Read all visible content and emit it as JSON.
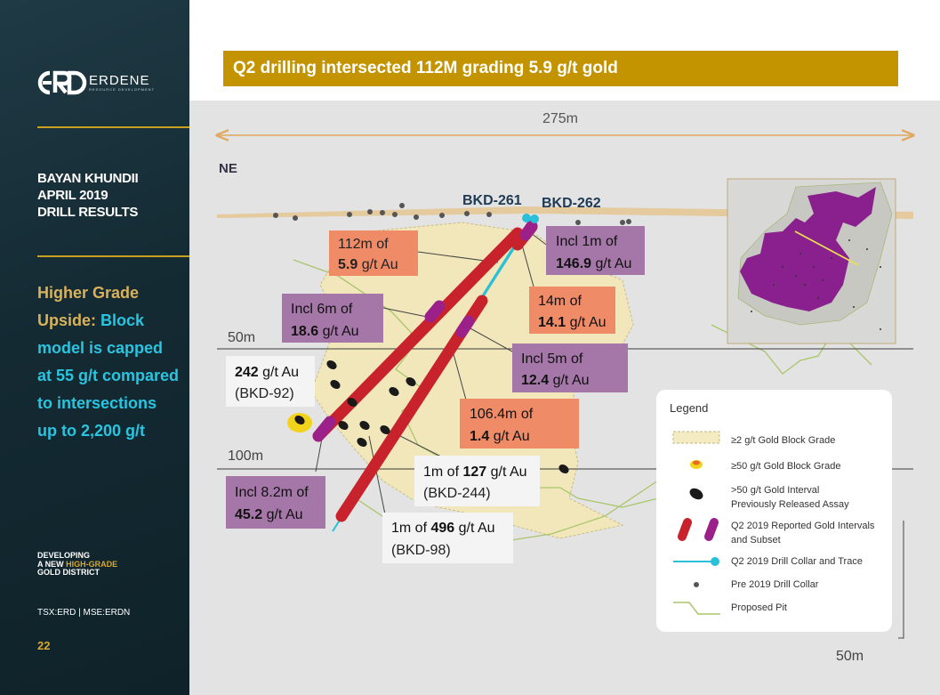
{
  "sidebar": {
    "logo_text": "ERDENE",
    "logo_sub": "RESOURCE DEVELOPMENT",
    "title_lines": [
      "BAYAN KHUNDII",
      "APRIL 2019",
      "DRILL RESULTS"
    ],
    "upside_gold": "Higher Grade Upside:",
    "upside_cyan": "Block model is capped at 55 g/t compared to intersections up to 2,200 g/t",
    "dev_line1": "DEVELOPING",
    "dev_line2_pre": "A NEW ",
    "dev_line2_hl": "HIGH-GRADE",
    "dev_line3": "GOLD DISTRICT",
    "ticker": "TSX:ERD | MSE:ERDN",
    "page_number": "22"
  },
  "banner": {
    "title": "Q2 drilling intersected 112M grading 5.9 g/t gold"
  },
  "colors": {
    "accent_gold": "#c39400",
    "orange_box": "#ef8c67",
    "purple_box": "#a576a8",
    "red_interval": "#c8232c",
    "magenta_interval": "#9b2089",
    "cyan_trace": "#2ac0d8"
  },
  "section": {
    "width_label": "275m",
    "direction": "NE",
    "level_50": "50m",
    "level_100": "100m",
    "hole_a": "BKD-261",
    "hole_b": "BKD-262",
    "scale_label": "50m"
  },
  "callouts": {
    "c112_line1": "112m of",
    "c112_val": "5.9",
    "c112_unit": " g/t Au",
    "c1469_line1": "Incl 1m of",
    "c1469_val": "146.9",
    "c1469_unit": " g/t Au",
    "c14_line1": "14m of",
    "c14_val": "14.1",
    "c14_unit": " g/t Au",
    "c186_line1": "Incl 6m of",
    "c186_val": "18.6",
    "c186_unit": " g/t Au",
    "c124_line1": "Incl 5m of",
    "c124_val": "12.4",
    "c124_unit": " g/t Au",
    "c242_val": "242",
    "c242_unit": " g/t Au",
    "c242_hole": "(BKD-92)",
    "c1064_line1": "106.4m of",
    "c1064_val": "1.4",
    "c1064_unit": " g/t Au",
    "c127_pre": "1m of ",
    "c127_val": "127",
    "c127_unit": " g/t Au",
    "c127_hole": "(BKD-244)",
    "c452_line1": "Incl 8.2m of",
    "c452_val": "45.2",
    "c452_unit": " g/t Au",
    "c496_pre": "1m of ",
    "c496_val": "496",
    "c496_unit": " g/t Au",
    "c496_hole": "(BKD-98)"
  },
  "legend": {
    "title": "Legend",
    "items": [
      "≥2 g/t Gold Block Grade",
      "≥50 g/t Gold Block Grade",
      ">50 g/t Gold Interval",
      "Previously Released Assay",
      "Q2 2019 Reported Gold Intervals",
      "and Subset",
      "Q2 2019 Drill Collar and Trace",
      "Pre 2019 Drill Collar",
      "Proposed Pit"
    ]
  }
}
